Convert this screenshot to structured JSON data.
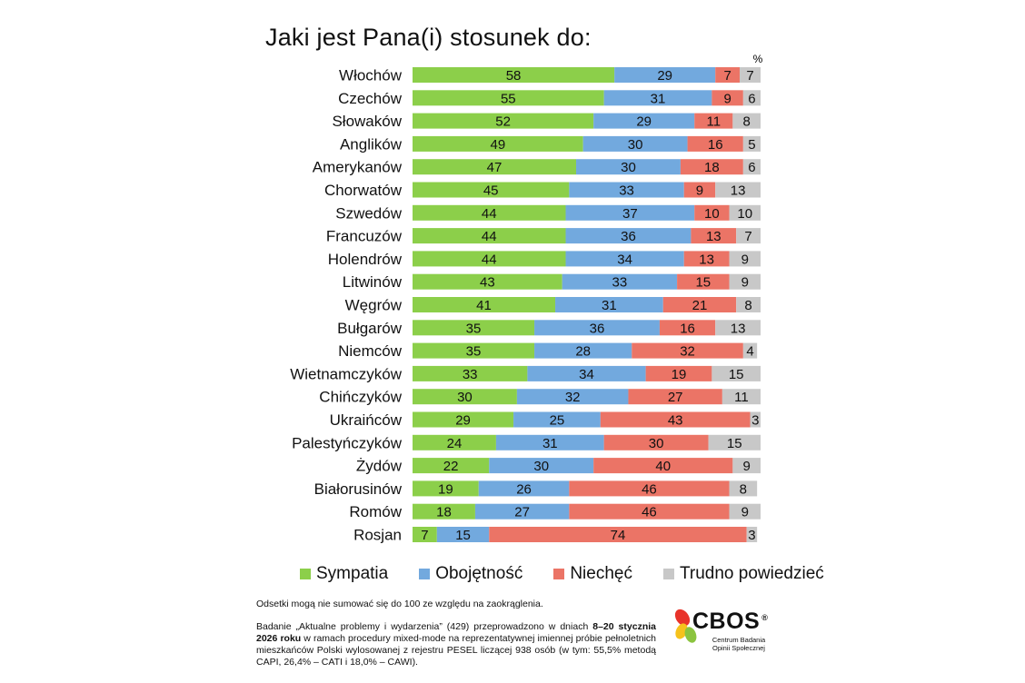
{
  "title": "Jaki jest Pana(i) stosunek do:",
  "unit_label": "%",
  "legend": {
    "sympatia": "Sympatia",
    "obojetnosc": "Obojętność",
    "niechec": "Niechęć",
    "trudno": "Trudno powiedzieć"
  },
  "colors": {
    "sympatia": "#8ccf4a",
    "obojetnosc": "#72a9de",
    "niechec": "#eb7466",
    "trudno": "#c8c8c8"
  },
  "chart_data": {
    "type": "bar",
    "orientation": "horizontal",
    "stacked": true,
    "title": "Jaki jest Pana(i) stosunek do:",
    "unit": "%",
    "categories": [
      "Włochów",
      "Czechów",
      "Słowaków",
      "Anglików",
      "Amerykanów",
      "Chorwatów",
      "Szwedów",
      "Francuzów",
      "Holendrów",
      "Litwinów",
      "Węgrów",
      "Bułgarów",
      "Niemców",
      "Wietnamczyków",
      "Chińczyków",
      "Ukraińców",
      "Palestyńczyków",
      "Żydów",
      "Białorusinów",
      "Romów",
      "Rosjan"
    ],
    "series": [
      {
        "name": "Sympatia",
        "values": [
          58,
          55,
          52,
          49,
          47,
          45,
          44,
          44,
          44,
          43,
          41,
          35,
          35,
          33,
          30,
          29,
          24,
          22,
          19,
          18,
          7
        ]
      },
      {
        "name": "Obojętność",
        "values": [
          29,
          31,
          29,
          30,
          30,
          33,
          37,
          36,
          34,
          33,
          31,
          36,
          28,
          34,
          32,
          25,
          31,
          30,
          26,
          27,
          15
        ]
      },
      {
        "name": "Niechęć",
        "values": [
          7,
          9,
          11,
          16,
          18,
          9,
          10,
          13,
          13,
          15,
          21,
          16,
          32,
          19,
          27,
          43,
          30,
          40,
          46,
          46,
          74
        ]
      },
      {
        "name": "Trudno powiedzieć",
        "values": [
          7,
          6,
          8,
          5,
          6,
          13,
          10,
          7,
          9,
          9,
          8,
          13,
          4,
          15,
          11,
          3,
          15,
          9,
          8,
          9,
          3
        ]
      }
    ],
    "xlim": [
      0,
      100
    ]
  },
  "footnote": "Odsetki mogą nie sumować się do 100 ze względu na zaokrąglenia.",
  "method": {
    "part1": "Badanie „Aktualne problemy i wydarzenia” (429) przeprowadzono w dniach ",
    "bold1": "8–20 stycznia 2026 roku",
    "part2": " w ramach procedury mixed-mode na reprezentatywnej imiennej próbie pełnoletnich mieszkańców Polski wylosowanej z rejestru PESEL liczącej 938 osób (w tym: 55,5% metodą CAPI, 26,4% – CATI i 18,0% – CAWI)."
  },
  "logo": {
    "name": "CBOS",
    "subtitle": "Centrum Badania Opinii Społecznej",
    "reg": "®"
  }
}
